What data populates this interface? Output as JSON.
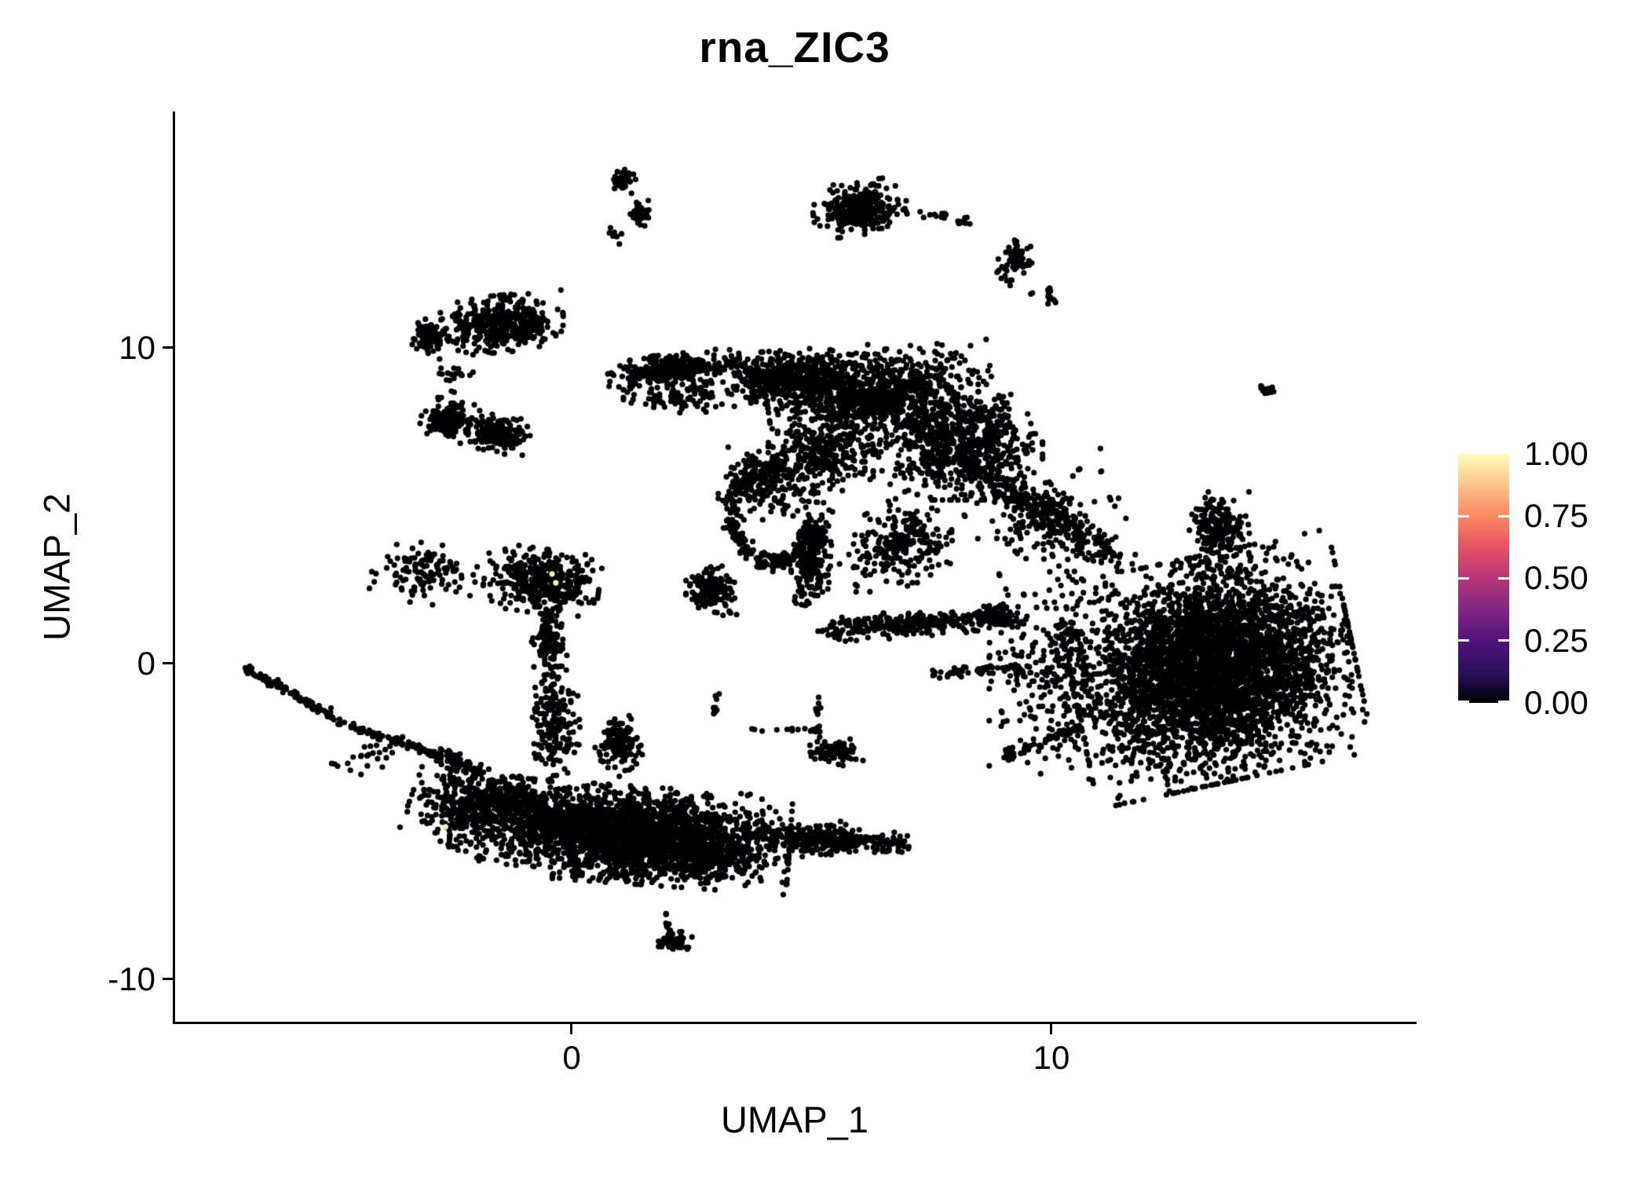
{
  "title": "rna_ZIC3",
  "x_axis": {
    "label": "UMAP_1",
    "ticks": [
      {
        "value": 0,
        "label": "0"
      },
      {
        "value": 10,
        "label": "10"
      }
    ]
  },
  "y_axis": {
    "label": "UMAP_2",
    "ticks": [
      {
        "value": 10,
        "label": "10"
      },
      {
        "value": 0,
        "label": "0"
      },
      {
        "value": -10,
        "label": "-10"
      }
    ]
  },
  "legend": {
    "labels": [
      "1.00",
      "0.75",
      "0.50",
      "0.25",
      "0.00"
    ],
    "values": [
      1.0,
      0.75,
      0.5,
      0.25,
      0.0
    ],
    "gradient_stops": [
      "#000004",
      "#2C115F",
      "#51127C",
      "#822681",
      "#B63679",
      "#E65164",
      "#FB8861",
      "#FEC287",
      "#FCFDBF"
    ],
    "tick_color": "#ffffff"
  },
  "colors": {
    "point_low": "#000004",
    "point_high": "#F5F0B2",
    "axis": "#000000",
    "background": "#ffffff"
  },
  "chart_data": {
    "type": "scatter",
    "title": "rna_ZIC3",
    "xlabel": "UMAP_1",
    "ylabel": "UMAP_2",
    "xlim": [
      -8.3,
      17.6
    ],
    "ylim": [
      -11.4,
      18.4
    ],
    "x_ticks": [
      0,
      10
    ],
    "y_ticks": [
      -10,
      0,
      10
    ],
    "grid": false,
    "legend_position": "right",
    "color_scale": {
      "min": 0.0,
      "max": 1.0,
      "breaks": [
        0.0,
        0.25,
        0.5,
        0.75,
        1.0
      ],
      "palette": "magma"
    },
    "point_color": "#000004",
    "high_expression_points": [
      {
        "x": -0.41,
        "y": 2.84,
        "value": 1.0
      },
      {
        "x": -0.33,
        "y": 2.56,
        "value": 1.0
      },
      {
        "x": -2.63,
        "y": -5.17,
        "value": 1.0
      }
    ],
    "clusters": [
      {
        "id": "top-left-mini-a",
        "shape": "blob",
        "x": 1.08,
        "y": 15.25,
        "rx": 0.21,
        "ry": 0.4,
        "rot": 0,
        "n": 50
      },
      {
        "id": "top-left-mini-b",
        "shape": "blob",
        "x": 1.44,
        "y": 14.25,
        "rx": 0.18,
        "ry": 0.35,
        "rot": 0,
        "n": 35
      },
      {
        "id": "top-left-mini-dots",
        "shape": "blob",
        "x": 0.93,
        "y": 13.56,
        "rx": 0.15,
        "ry": 0.25,
        "rot": 0,
        "n": 7
      },
      {
        "id": "top-mid",
        "shape": "blob",
        "x": 6.01,
        "y": 14.43,
        "rx": 0.82,
        "ry": 0.7,
        "rot": -8,
        "n": 280
      },
      {
        "id": "top-mid-tail",
        "shape": "line",
        "pts": [
          [
            6.95,
            14.38
          ],
          [
            8.3,
            14.0
          ]
        ],
        "jitter": 0.09,
        "n": 22
      },
      {
        "id": "top-chain-blob",
        "shape": "blob",
        "x": 9.23,
        "y": 12.69,
        "rx": 0.29,
        "ry": 0.7,
        "rot": 15,
        "n": 70
      },
      {
        "id": "top-chain-small",
        "shape": "blob",
        "x": 9.97,
        "y": 11.64,
        "rx": 0.15,
        "ry": 0.22,
        "rot": 0,
        "n": 14
      },
      {
        "id": "stray-dot-1",
        "shape": "blob",
        "x": 9.57,
        "y": 11.72,
        "rx": 0.03,
        "ry": 0.04,
        "rot": 0,
        "n": 2
      },
      {
        "id": "left-fan",
        "shape": "blob",
        "x": -1.44,
        "y": 10.77,
        "rx": 1.06,
        "ry": 0.75,
        "rot": -5,
        "n": 420
      },
      {
        "id": "left-fan-lobe",
        "shape": "blob",
        "x": -2.99,
        "y": 10.37,
        "rx": 0.41,
        "ry": 0.45,
        "rot": 0,
        "n": 90
      },
      {
        "id": "left-fan-below",
        "shape": "blob",
        "x": -2.5,
        "y": 9.08,
        "rx": 0.4,
        "ry": 0.55,
        "rot": 0,
        "n": 18
      },
      {
        "id": "left-chain",
        "shape": "line",
        "pts": [
          [
            -2.5,
            8.71
          ],
          [
            -2.45,
            7.39
          ]
        ],
        "jitter": 0.06,
        "n": 7
      },
      {
        "id": "left-band-a",
        "shape": "blob",
        "x": -2.55,
        "y": 7.71,
        "rx": 0.49,
        "ry": 0.55,
        "rot": 10,
        "n": 160
      },
      {
        "id": "left-band-b",
        "shape": "blob",
        "x": -1.52,
        "y": 7.29,
        "rx": 0.57,
        "ry": 0.5,
        "rot": 12,
        "n": 160
      },
      {
        "id": "central-wedge",
        "shape": "blob",
        "x": 2.13,
        "y": 9.33,
        "rx": 1.15,
        "ry": 0.4,
        "rot": -6,
        "n": 320
      },
      {
        "id": "central-wedge-sparse",
        "shape": "blob",
        "x": 2.16,
        "y": 8.46,
        "rx": 0.9,
        "ry": 0.5,
        "rot": 0,
        "n": 90
      },
      {
        "id": "central-a",
        "shape": "blob",
        "x": 4.45,
        "y": 9.08,
        "rx": 1.47,
        "ry": 0.7,
        "rot": -4,
        "n": 520
      },
      {
        "id": "central-b",
        "shape": "blob",
        "x": 6.42,
        "y": 8.58,
        "rx": 1.96,
        "ry": 1.12,
        "rot": -8,
        "n": 850
      },
      {
        "id": "central-c",
        "shape": "blob",
        "x": 8.05,
        "y": 6.97,
        "rx": 1.47,
        "ry": 1.49,
        "rot": 0,
        "n": 750
      },
      {
        "id": "central-d",
        "shape": "blob",
        "x": 5.27,
        "y": 6.72,
        "rx": 0.98,
        "ry": 1.12,
        "rot": 0,
        "n": 300
      },
      {
        "id": "central-bridge",
        "shape": "blob",
        "x": 4.04,
        "y": 5.72,
        "rx": 0.82,
        "ry": 1.0,
        "rot": 0,
        "n": 180
      },
      {
        "id": "hook-ring",
        "shape": "ring",
        "x": 4.29,
        "y": 4.73,
        "r": 0.98,
        "a0": 80,
        "a1": 300,
        "thick": 0.18,
        "n": 260
      },
      {
        "id": "hook-knob",
        "shape": "blob",
        "x": 2.91,
        "y": 2.31,
        "rx": 0.44,
        "ry": 0.65,
        "rot": 0,
        "n": 160
      },
      {
        "id": "hook-vertical",
        "shape": "blob",
        "x": 4.98,
        "y": 3.48,
        "rx": 0.36,
        "ry": 1.37,
        "rot": 5,
        "n": 280
      },
      {
        "id": "central-e",
        "shape": "blob",
        "x": 6.91,
        "y": 3.86,
        "rx": 1.15,
        "ry": 1.12,
        "rot": -30,
        "n": 250
      },
      {
        "id": "long-band",
        "shape": "line",
        "pts": [
          [
            5.43,
            1.07
          ],
          [
            7.4,
            1.32
          ],
          [
            9.36,
            1.52
          ]
        ],
        "jitter": 0.21,
        "n": 380
      },
      {
        "id": "band-trail",
        "shape": "line",
        "pts": [
          [
            7.56,
            -0.32
          ],
          [
            9.36,
            -0.17
          ]
        ],
        "jitter": 0.12,
        "n": 60
      },
      {
        "id": "right-shoulder",
        "shape": "line",
        "pts": [
          [
            8.38,
            6.09
          ],
          [
            9.8,
            4.85
          ],
          [
            11.33,
            3.31
          ]
        ],
        "jitter": 0.28,
        "n": 280
      },
      {
        "id": "right-shoulder-fan",
        "shape": "blob",
        "x": 10.02,
        "y": 4.6,
        "rx": 1.2,
        "ry": 1.3,
        "rot": -20,
        "n": 150
      },
      {
        "id": "right-knob",
        "shape": "blob",
        "x": 13.5,
        "y": 4.3,
        "rx": 0.52,
        "ry": 0.95,
        "rot": 0,
        "n": 210
      },
      {
        "id": "right-main",
        "shape": "blob",
        "x": 13.37,
        "y": -0.17,
        "rx": 2.45,
        "ry": 2.99,
        "rot": -12,
        "n": 4200
      },
      {
        "id": "right-halo",
        "shape": "blob",
        "x": 10.18,
        "y": -0.37,
        "rx": 1.23,
        "ry": 2.74,
        "rot": 0,
        "n": 320
      },
      {
        "id": "right-tail",
        "shape": "line",
        "pts": [
          [
            9.12,
            -2.91
          ],
          [
            10.59,
            -1.99
          ]
        ],
        "jitter": 0.1,
        "n": 45
      },
      {
        "id": "right-tail-tip",
        "shape": "blob",
        "x": 9.12,
        "y": -2.88,
        "rx": 0.12,
        "ry": 0.2,
        "rot": 0,
        "n": 25
      },
      {
        "id": "lone-right",
        "shape": "blob",
        "x": 14.44,
        "y": 8.66,
        "rx": 0.16,
        "ry": 0.2,
        "rot": 0,
        "n": 14
      },
      {
        "id": "mid-left-band-sparse",
        "shape": "blob",
        "x": -3.08,
        "y": 2.86,
        "rx": 0.9,
        "ry": 0.8,
        "rot": 8,
        "n": 120
      },
      {
        "id": "mid-left-band-dense",
        "shape": "blob",
        "x": -0.62,
        "y": 2.61,
        "rx": 1.0,
        "ry": 0.85,
        "rot": 8,
        "n": 380
      },
      {
        "id": "mid-neck",
        "shape": "blob",
        "x": -0.46,
        "y": 0.75,
        "rx": 0.33,
        "ry": 1.12,
        "rot": 0,
        "n": 120
      },
      {
        "id": "mid-tangle",
        "shape": "blob",
        "x": -0.38,
        "y": -1.87,
        "rx": 0.46,
        "ry": 1.49,
        "rot": 0,
        "n": 180
      },
      {
        "id": "mid-tangle-blob",
        "shape": "blob",
        "x": 0.98,
        "y": -2.61,
        "rx": 0.41,
        "ry": 0.8,
        "rot": 0,
        "n": 130
      },
      {
        "id": "hub",
        "shape": "blob",
        "x": -2.26,
        "y": -4.48,
        "rx": 0.9,
        "ry": 1.12,
        "rot": 20,
        "n": 280
      },
      {
        "id": "thin-streak",
        "shape": "line",
        "pts": [
          [
            -6.78,
            -0.15
          ],
          [
            -4.71,
            -1.92
          ],
          [
            -2.75,
            -2.91
          ]
        ],
        "jitter": 0.07,
        "n": 170
      },
      {
        "id": "streak-thick",
        "shape": "line",
        "pts": [
          [
            -2.75,
            -2.91
          ],
          [
            -1.77,
            -3.48
          ]
        ],
        "jitter": 0.15,
        "n": 60
      },
      {
        "id": "streak-sparse",
        "shape": "blob",
        "x": -4.06,
        "y": -2.86,
        "rx": 0.8,
        "ry": 0.5,
        "rot": -15,
        "n": 25
      },
      {
        "id": "bottom-main",
        "shape": "blob",
        "x": 1.01,
        "y": -5.4,
        "rx": 2.95,
        "ry": 1.29,
        "rot": 4,
        "n": 2600
      },
      {
        "id": "bottom-bump-left",
        "shape": "blob",
        "x": -1.28,
        "y": -4.23,
        "rx": 0.65,
        "ry": 0.55,
        "rot": 0,
        "n": 200
      },
      {
        "id": "bottom-bump-right",
        "shape": "blob",
        "x": 2.82,
        "y": -6.09,
        "rx": 1.0,
        "ry": 0.7,
        "rot": 8,
        "n": 300
      },
      {
        "id": "bottom-ext-band",
        "shape": "line",
        "pts": [
          [
            3.63,
            -5.4
          ],
          [
            6.91,
            -5.72
          ]
        ],
        "jitter": 0.2,
        "n": 260
      },
      {
        "id": "bottom-ext-blob",
        "shape": "blob",
        "x": 5.27,
        "y": -5.55,
        "rx": 0.65,
        "ry": 0.45,
        "rot": -5,
        "n": 120
      },
      {
        "id": "mid-dash-blob",
        "shape": "blob",
        "x": 5.52,
        "y": -2.81,
        "rx": 0.46,
        "ry": 0.35,
        "rot": 0,
        "n": 80
      },
      {
        "id": "dash-v1",
        "shape": "line",
        "pts": [
          [
            2.98,
            -0.97
          ],
          [
            2.98,
            -1.69
          ]
        ],
        "jitter": 0.05,
        "n": 10
      },
      {
        "id": "dash-h",
        "shape": "line",
        "pts": [
          [
            3.63,
            -2.06
          ],
          [
            5.14,
            -2.11
          ]
        ],
        "jitter": 0.04,
        "n": 14
      },
      {
        "id": "dash-v2",
        "shape": "line",
        "pts": [
          [
            5.14,
            -1.02
          ],
          [
            5.14,
            -2.51
          ]
        ],
        "jitter": 0.05,
        "n": 16
      },
      {
        "id": "bottom-mini-chain",
        "shape": "line",
        "pts": [
          [
            2.0,
            -7.79
          ],
          [
            2.03,
            -8.63
          ]
        ],
        "jitter": 0.05,
        "n": 8
      },
      {
        "id": "bottom-mini-blob",
        "shape": "blob",
        "x": 2.16,
        "y": -8.83,
        "rx": 0.29,
        "ry": 0.3,
        "rot": 0,
        "n": 55
      }
    ]
  }
}
